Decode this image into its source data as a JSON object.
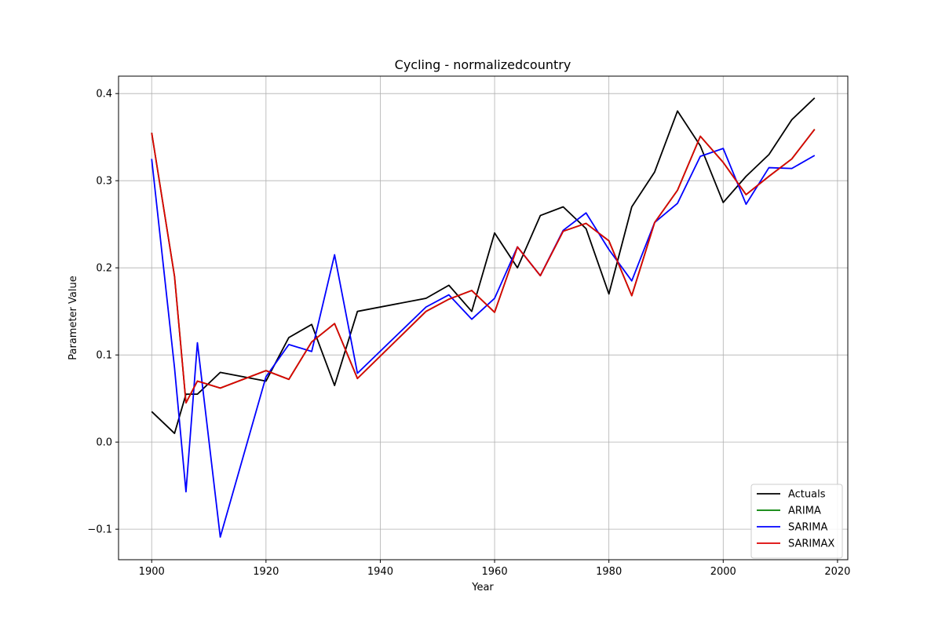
{
  "chart_data": {
    "type": "line",
    "title": "Cycling - normalizedcountry",
    "xlabel": "Year",
    "ylabel": "Parameter Value",
    "xlim": [
      1894.2,
      2021.8
    ],
    "ylim": [
      -0.135,
      0.42
    ],
    "xticks": [
      1900,
      1920,
      1940,
      1960,
      1980,
      2000,
      2020
    ],
    "yticks": [
      -0.1,
      0.0,
      0.1,
      0.2,
      0.3,
      0.4
    ],
    "xtick_labels": [
      "1900",
      "1920",
      "1940",
      "1960",
      "1980",
      "2000",
      "2020"
    ],
    "ytick_labels": [
      "−0.1",
      "0.0",
      "0.1",
      "0.2",
      "0.3",
      "0.4"
    ],
    "grid": true,
    "legend_position": "bottom-right",
    "series": [
      {
        "name": "Actuals",
        "color": "#000000",
        "x": [
          1900,
          1904,
          1906,
          1908,
          1912,
          1920,
          1924,
          1928,
          1932,
          1936,
          1948,
          1952,
          1956,
          1960,
          1964,
          1968,
          1972,
          1976,
          1980,
          1984,
          1988,
          1992,
          1996,
          2000,
          2004,
          2008,
          2012,
          2016
        ],
        "y": [
          0.035,
          0.01,
          0.055,
          0.055,
          0.08,
          0.07,
          0.12,
          0.135,
          0.065,
          0.15,
          0.165,
          0.18,
          0.15,
          0.24,
          0.2,
          0.26,
          0.27,
          0.245,
          0.17,
          0.27,
          0.31,
          0.38,
          0.34,
          0.275,
          0.305,
          0.33,
          0.37,
          0.395
        ]
      },
      {
        "name": "ARIMA",
        "color": "#008000",
        "x": [
          1900,
          1904,
          1906,
          1908,
          1912,
          1920,
          1924,
          1928,
          1932,
          1936,
          1948,
          1952,
          1956,
          1960,
          1964,
          1968,
          1972,
          1976,
          1980,
          1984,
          1988,
          1992,
          1996,
          2000,
          2004,
          2008,
          2012,
          2016
        ],
        "y": [
          0.355,
          0.19,
          0.045,
          0.07,
          0.062,
          0.082,
          0.072,
          0.115,
          0.136,
          0.073,
          0.15,
          0.164,
          0.174,
          0.149,
          0.224,
          0.191,
          0.242,
          0.251,
          0.231,
          0.168,
          0.252,
          0.289,
          0.351,
          0.321,
          0.284,
          0.305,
          0.325,
          0.359
        ]
      },
      {
        "name": "SARIMA",
        "color": "#0000ff",
        "x": [
          1900,
          1904,
          1906,
          1908,
          1912,
          1920,
          1924,
          1928,
          1932,
          1936,
          1948,
          1952,
          1956,
          1960,
          1964,
          1968,
          1972,
          1976,
          1980,
          1984,
          1988,
          1992,
          1996,
          2000,
          2004,
          2008,
          2012,
          2016
        ],
        "y": [
          0.325,
          0.085,
          -0.057,
          0.114,
          -0.109,
          0.075,
          0.112,
          0.104,
          0.215,
          0.079,
          0.155,
          0.169,
          0.141,
          0.165,
          0.224,
          0.191,
          0.243,
          0.263,
          0.221,
          0.185,
          0.252,
          0.274,
          0.328,
          0.337,
          0.273,
          0.315,
          0.314,
          0.329
        ]
      },
      {
        "name": "SARIMAX",
        "color": "#dd0000",
        "x": [
          1900,
          1904,
          1906,
          1908,
          1912,
          1920,
          1924,
          1928,
          1932,
          1936,
          1948,
          1952,
          1956,
          1960,
          1964,
          1968,
          1972,
          1976,
          1980,
          1984,
          1988,
          1992,
          1996,
          2000,
          2004,
          2008,
          2012,
          2016
        ],
        "y": [
          0.355,
          0.19,
          0.045,
          0.07,
          0.062,
          0.082,
          0.072,
          0.115,
          0.136,
          0.073,
          0.15,
          0.164,
          0.174,
          0.149,
          0.224,
          0.191,
          0.242,
          0.251,
          0.231,
          0.168,
          0.252,
          0.289,
          0.351,
          0.321,
          0.284,
          0.305,
          0.325,
          0.359
        ]
      }
    ]
  }
}
